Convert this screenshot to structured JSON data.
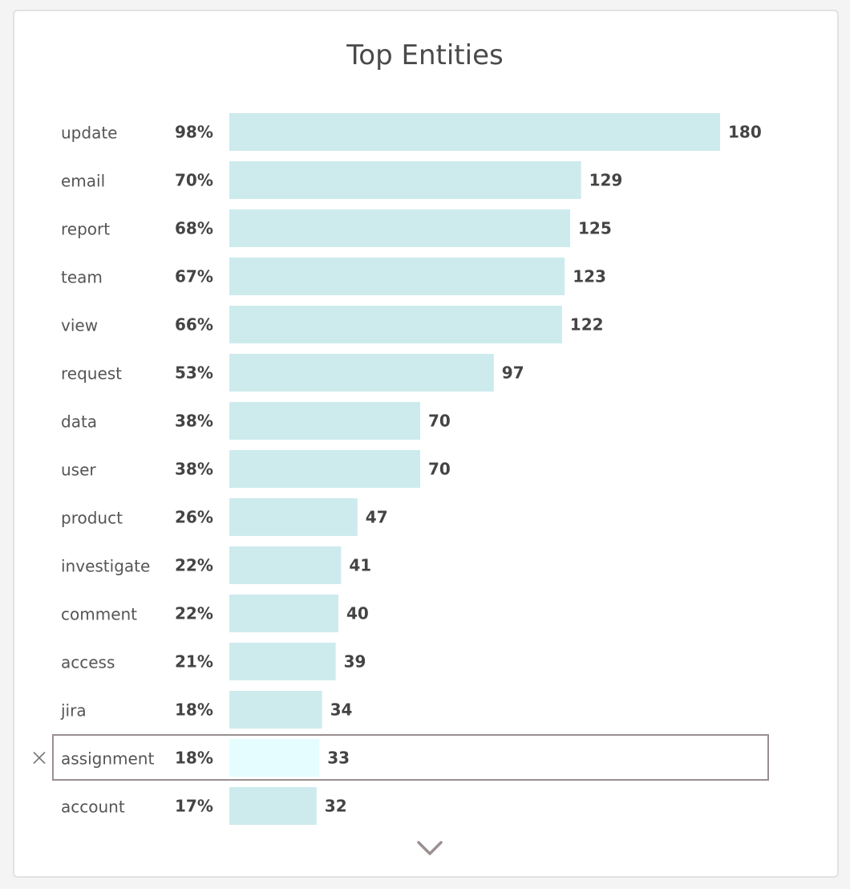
{
  "title": "Top Entities",
  "colors": {
    "bar": "#cdebed",
    "bar_selected": "#e5fdfe",
    "selection_border": "#9a8f90",
    "close_icon": "#777777",
    "chevron": "#9b8f90"
  },
  "selected_row": "assignment",
  "icons": {
    "deselect": "close-icon",
    "more": "chevron-down-icon"
  },
  "chart_data": {
    "type": "bar",
    "orientation": "horizontal",
    "title": "Top Entities",
    "categories": [
      "update",
      "email",
      "report",
      "team",
      "view",
      "request",
      "data",
      "user",
      "product",
      "investigate",
      "comment",
      "access",
      "jira",
      "assignment",
      "account"
    ],
    "values": [
      180,
      129,
      125,
      123,
      122,
      97,
      70,
      70,
      47,
      41,
      40,
      39,
      34,
      33,
      32
    ],
    "percent_labels": [
      "98%",
      "70%",
      "68%",
      "67%",
      "66%",
      "53%",
      "38%",
      "38%",
      "26%",
      "22%",
      "22%",
      "21%",
      "18%",
      "18%",
      "17%"
    ],
    "xlim": [
      0,
      180
    ],
    "grid": false,
    "legend": "none"
  }
}
